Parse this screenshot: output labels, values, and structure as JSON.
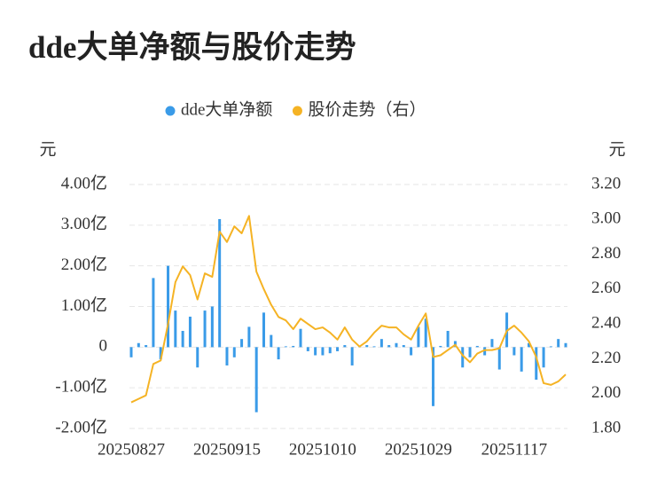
{
  "chart_data": {
    "type": "bar_line",
    "title": "dde大单净额与股价走势",
    "y_label": "元",
    "y2_label": "元",
    "categories": [
      "20250827",
      null,
      null,
      null,
      null,
      null,
      null,
      null,
      null,
      null,
      null,
      null,
      null,
      "20250915",
      null,
      null,
      null,
      null,
      null,
      null,
      null,
      null,
      null,
      null,
      null,
      null,
      "20251010",
      null,
      null,
      null,
      null,
      null,
      null,
      null,
      null,
      null,
      null,
      null,
      null,
      "20251029",
      null,
      null,
      null,
      null,
      null,
      null,
      null,
      null,
      null,
      null,
      null,
      null,
      "20251117",
      null,
      null,
      null,
      null,
      null,
      null,
      null
    ],
    "series": [
      {
        "name": "dde大单净额",
        "type": "bar",
        "color": "#3a9be8",
        "values": [
          -0.25,
          0.1,
          0.05,
          1.7,
          -0.3,
          2.0,
          0.9,
          0.4,
          0.75,
          -0.5,
          0.9,
          1.0,
          3.15,
          -0.45,
          -0.25,
          0.2,
          0.5,
          -1.6,
          0.85,
          0.3,
          -0.3,
          0.02,
          0.03,
          0.45,
          -0.1,
          -0.2,
          -0.2,
          -0.15,
          -0.1,
          0.05,
          -0.45,
          0.03,
          0.05,
          0.02,
          0.2,
          0.05,
          0.1,
          0.05,
          -0.2,
          0.5,
          0.7,
          -1.45,
          0.03,
          0.4,
          0.15,
          -0.5,
          -0.25,
          0.03,
          -0.2,
          0.2,
          -0.55,
          0.85,
          -0.2,
          -0.6,
          0.1,
          -0.8,
          -0.5,
          0.02,
          0.2,
          0.1
        ]
      },
      {
        "name": "股价走势（右）",
        "type": "line",
        "axis": "y2",
        "color": "#f5b324",
        "values": [
          1.95,
          1.97,
          1.99,
          2.17,
          2.19,
          2.4,
          2.64,
          2.73,
          2.68,
          2.54,
          2.69,
          2.67,
          2.93,
          2.87,
          2.96,
          2.92,
          3.02,
          2.7,
          2.6,
          2.51,
          2.44,
          2.42,
          2.37,
          2.43,
          2.4,
          2.37,
          2.38,
          2.35,
          2.31,
          2.38,
          2.31,
          2.27,
          2.3,
          2.35,
          2.39,
          2.38,
          2.38,
          2.34,
          2.31,
          2.39,
          2.46,
          2.21,
          2.22,
          2.25,
          2.28,
          2.22,
          2.18,
          2.23,
          2.25,
          2.25,
          2.26,
          2.36,
          2.39,
          2.35,
          2.3,
          2.21,
          2.06,
          2.05,
          2.07,
          2.11
        ]
      }
    ],
    "ylim": [
      -2,
      4
    ],
    "yticks": [
      {
        "value": -2,
        "label": "-2.00亿"
      },
      {
        "value": -1,
        "label": "-1.00亿"
      },
      0,
      {
        "value": 1,
        "label": "1.00亿"
      },
      {
        "value": 2,
        "label": "2.00亿"
      },
      {
        "value": 3,
        "label": "3.00亿"
      },
      {
        "value": 4,
        "label": "4.00亿"
      }
    ],
    "y2lim": [
      1.8,
      3.2
    ],
    "y2ticks": [
      {
        "value": 1.8,
        "label": "1.80"
      },
      {
        "value": 2.0,
        "label": "2.00"
      },
      {
        "value": 2.2,
        "label": "2.20"
      },
      {
        "value": 2.4,
        "label": "2.40"
      },
      {
        "value": 2.6,
        "label": "2.60"
      },
      {
        "value": 2.8,
        "label": "2.80"
      },
      {
        "value": 3.0,
        "label": "3.00"
      },
      {
        "value": 3.2,
        "label": "3.20"
      }
    ],
    "grid": true
  }
}
